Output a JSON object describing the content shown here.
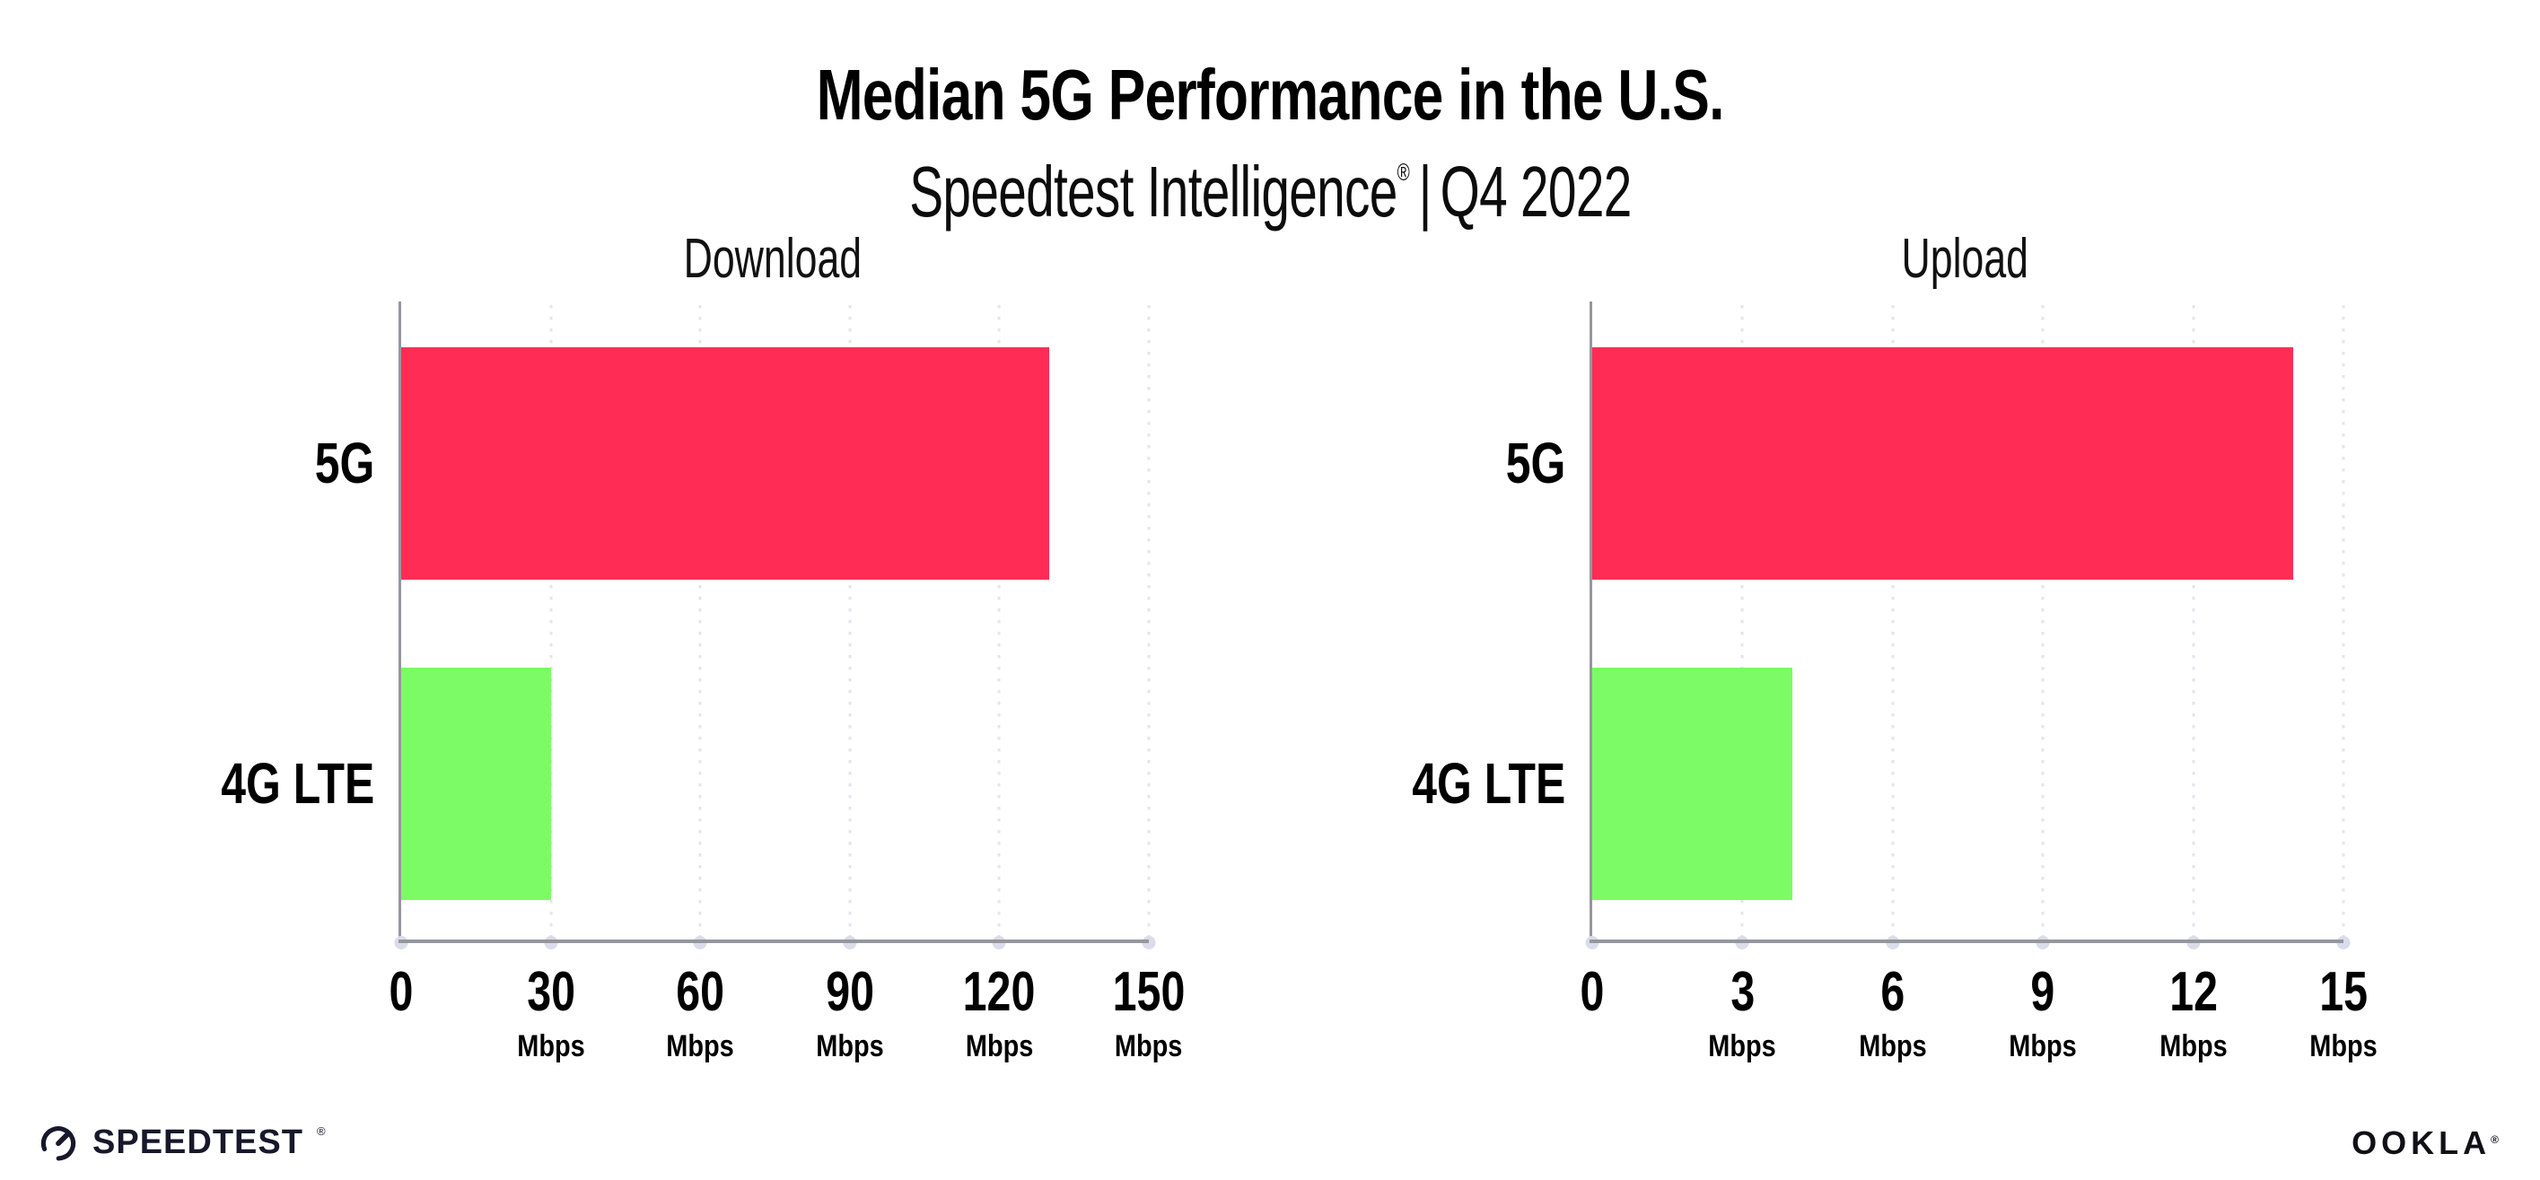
{
  "header": {
    "title": "Median 5G Performance in the U.S.",
    "subtitle_brand": "Speedtest Intelligence",
    "subtitle_trademark": "®",
    "subtitle_separator": "|",
    "subtitle_period": "Q4 2022"
  },
  "colors": {
    "bar_5g": "#FF2D56",
    "bar_4g": "#7DFB66",
    "axis": "#96969E",
    "gridline": "#E4E5EC",
    "tick_dot": "#DADCE9",
    "text": "#000000",
    "logo_ink": "#17182B"
  },
  "chart_data": [
    {
      "type": "bar",
      "orientation": "horizontal",
      "title": "Download",
      "categories": [
        "5G",
        "4G LTE"
      ],
      "values": [
        130,
        30
      ],
      "unit": "Mbps",
      "xlabel": "",
      "xlim": [
        0,
        150
      ],
      "xticks": [
        0,
        30,
        60,
        90,
        120,
        150
      ],
      "bar_colors": [
        "#FF2D56",
        "#7DFB66"
      ],
      "grid": "dotted-vertical",
      "legend": "none"
    },
    {
      "type": "bar",
      "orientation": "horizontal",
      "title": "Upload",
      "categories": [
        "5G",
        "4G LTE"
      ],
      "values": [
        14,
        4
      ],
      "unit": "Mbps",
      "xlabel": "",
      "xlim": [
        0,
        15
      ],
      "xticks": [
        0,
        3,
        6,
        9,
        12,
        15
      ],
      "bar_colors": [
        "#FF2D56",
        "#7DFB66"
      ],
      "grid": "dotted-vertical",
      "legend": "none"
    }
  ],
  "footer": {
    "speedtest_label": "SPEEDTEST",
    "speedtest_trademark": "®",
    "ookla_label": "OOKLA",
    "ookla_trademark": "®"
  }
}
